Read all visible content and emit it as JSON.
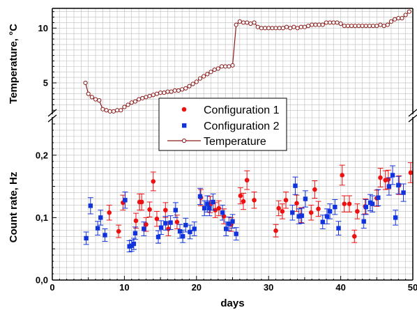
{
  "chart_data": {
    "type": "scatter",
    "title": "",
    "xlabel": "days",
    "xlim": [
      0,
      50
    ],
    "x_ticks": [
      "0",
      "10",
      "20",
      "30",
      "40",
      "50"
    ],
    "grid": true,
    "legend_position": "center",
    "legend": [
      "Configuration 1",
      "Configuration 2",
      "Temperature"
    ],
    "colors": {
      "config1": "#ee1111",
      "config2": "#1133dd",
      "temperature": "#8b1a1a"
    },
    "top_panel": {
      "ylabel": "Temperature, °C",
      "ylim": [
        2.2,
        11.8
      ],
      "y_ticks": [
        "5",
        "10"
      ],
      "series": [
        {
          "name": "Temperature",
          "x": [
            4.6,
            5.0,
            5.5,
            6.0,
            6.5,
            7.0,
            7.5,
            8.0,
            8.5,
            9.0,
            9.5,
            10.0,
            10.5,
            11.0,
            11.5,
            12.0,
            12.5,
            13.0,
            13.5,
            14.0,
            14.5,
            15.0,
            15.5,
            16.0,
            16.5,
            17.0,
            17.5,
            18.0,
            18.5,
            19.0,
            19.5,
            20.0,
            20.5,
            21.0,
            21.5,
            22.0,
            22.5,
            23.0,
            23.5,
            24.0,
            24.5,
            25.0,
            25.5,
            26.0,
            26.5,
            27.0,
            27.5,
            28.0,
            28.5,
            29.0,
            29.5,
            30.0,
            30.5,
            31.0,
            31.5,
            32.0,
            32.5,
            33.0,
            33.5,
            34.0,
            34.5,
            35.0,
            35.5,
            36.0,
            36.5,
            37.0,
            37.5,
            38.0,
            38.5,
            39.0,
            39.5,
            40.0,
            40.5,
            41.0,
            41.5,
            42.0,
            42.5,
            43.0,
            43.5,
            44.0,
            44.5,
            45.0,
            45.5,
            46.0,
            46.5,
            47.0,
            47.5,
            48.0,
            48.5,
            49.0,
            49.5
          ],
          "y": [
            5.0,
            4.0,
            3.7,
            3.5,
            3.4,
            2.6,
            2.5,
            2.4,
            2.4,
            2.5,
            2.5,
            2.8,
            3.0,
            3.2,
            3.3,
            3.5,
            3.6,
            3.7,
            3.8,
            3.9,
            4.0,
            4.1,
            4.1,
            4.2,
            4.2,
            4.3,
            4.3,
            4.4,
            4.5,
            4.7,
            4.9,
            5.1,
            5.4,
            5.6,
            5.8,
            6.0,
            6.2,
            6.3,
            6.5,
            6.5,
            6.5,
            6.6,
            10.3,
            10.6,
            10.5,
            10.5,
            10.4,
            10.5,
            10.1,
            10.0,
            10.0,
            10.0,
            10.0,
            10.0,
            10.0,
            10.0,
            10.1,
            10.0,
            10.1,
            10.0,
            10.1,
            10.1,
            10.2,
            10.3,
            10.3,
            10.3,
            10.3,
            10.5,
            10.5,
            10.5,
            10.5,
            10.4,
            10.2,
            10.2,
            10.2,
            10.2,
            10.2,
            10.2,
            10.2,
            10.2,
            10.2,
            10.2,
            10.3,
            10.2,
            10.3,
            10.6,
            10.8,
            10.9,
            10.9,
            11.2,
            11.5
          ]
        }
      ]
    },
    "bottom_panel": {
      "ylabel": "Count rate, Hz",
      "ylim": [
        0,
        0.26
      ],
      "y_ticks": [
        "0,0",
        "0,1",
        "0,2"
      ],
      "series": [
        {
          "name": "Configuration 1",
          "x": [
            7.9,
            9.2,
            9.8,
            11.6,
            12.1,
            12.4,
            13.0,
            13.5,
            14.0,
            14.5,
            15.7,
            16.1,
            17.3,
            20.6,
            21.9,
            22.6,
            23.1,
            23.8,
            24.8,
            26.1,
            26.5,
            27.0,
            28.0,
            31.0,
            31.4,
            31.9,
            32.4,
            33.9,
            34.5,
            35.9,
            36.4,
            36.9,
            40.2,
            40.5,
            41.2,
            41.9,
            42.3,
            43.4,
            45.0,
            45.5,
            46.2,
            46.6,
            48.1,
            49.7
          ],
          "y": [
            0.108,
            0.078,
            0.124,
            0.095,
            0.125,
            0.125,
            0.089,
            0.113,
            0.158,
            0.098,
            0.112,
            0.082,
            0.093,
            0.132,
            0.121,
            0.112,
            0.115,
            0.102,
            0.089,
            0.135,
            0.126,
            0.16,
            0.128,
            0.079,
            0.115,
            0.11,
            0.128,
            0.123,
            0.104,
            0.108,
            0.145,
            0.114,
            0.168,
            0.122,
            0.122,
            0.07,
            0.11,
            0.118,
            0.131,
            0.164,
            0.16,
            0.161,
            0.152,
            0.172
          ],
          "yerr": [
            0.012,
            0.01,
            0.012,
            0.012,
            0.013,
            0.013,
            0.011,
            0.012,
            0.015,
            0.012,
            0.012,
            0.011,
            0.011,
            0.013,
            0.013,
            0.012,
            0.012,
            0.012,
            0.011,
            0.013,
            0.013,
            0.015,
            0.013,
            0.01,
            0.012,
            0.012,
            0.013,
            0.013,
            0.012,
            0.012,
            0.014,
            0.012,
            0.016,
            0.013,
            0.013,
            0.01,
            0.012,
            0.012,
            0.013,
            0.015,
            0.015,
            0.015,
            0.015,
            0.016
          ]
        },
        {
          "name": "Configuration 2",
          "x": [
            4.7,
            5.3,
            6.3,
            6.7,
            7.3,
            10.1,
            10.7,
            11.0,
            11.3,
            11.5,
            12.7,
            14.7,
            15.1,
            15.7,
            16.4,
            17.1,
            17.7,
            18.1,
            18.5,
            19.1,
            19.7,
            20.5,
            21.1,
            21.5,
            21.8,
            22.3,
            23.6,
            24.1,
            24.5,
            25.0,
            25.5,
            33.3,
            33.7,
            34.2,
            34.6,
            35.1,
            37.5,
            38.1,
            38.5,
            39.2,
            39.7,
            43.2,
            43.5,
            44.1,
            44.4,
            45.2,
            46.7,
            47.2,
            47.6,
            48.0,
            48.7
          ],
          "y": [
            0.067,
            0.119,
            0.083,
            0.1,
            0.072,
            0.128,
            0.054,
            0.055,
            0.058,
            0.075,
            0.082,
            0.069,
            0.084,
            0.091,
            0.092,
            0.112,
            0.078,
            0.07,
            0.088,
            0.077,
            0.082,
            0.134,
            0.115,
            0.122,
            0.115,
            0.125,
            0.108,
            0.082,
            0.09,
            0.094,
            0.074,
            0.108,
            0.151,
            0.102,
            0.103,
            0.13,
            0.093,
            0.102,
            0.11,
            0.117,
            0.083,
            0.094,
            0.117,
            0.124,
            0.122,
            0.132,
            0.15,
            0.168,
            0.1,
            0.152,
            0.14
          ],
          "yerr": [
            0.01,
            0.013,
            0.011,
            0.012,
            0.01,
            0.013,
            0.009,
            0.009,
            0.009,
            0.01,
            0.011,
            0.01,
            0.011,
            0.011,
            0.011,
            0.012,
            0.011,
            0.01,
            0.011,
            0.011,
            0.011,
            0.013,
            0.012,
            0.013,
            0.012,
            0.013,
            0.012,
            0.011,
            0.011,
            0.011,
            0.01,
            0.012,
            0.014,
            0.012,
            0.012,
            0.013,
            0.011,
            0.012,
            0.012,
            0.012,
            0.011,
            0.011,
            0.012,
            0.013,
            0.013,
            0.013,
            0.014,
            0.015,
            0.012,
            0.014,
            0.014
          ]
        }
      ]
    }
  }
}
